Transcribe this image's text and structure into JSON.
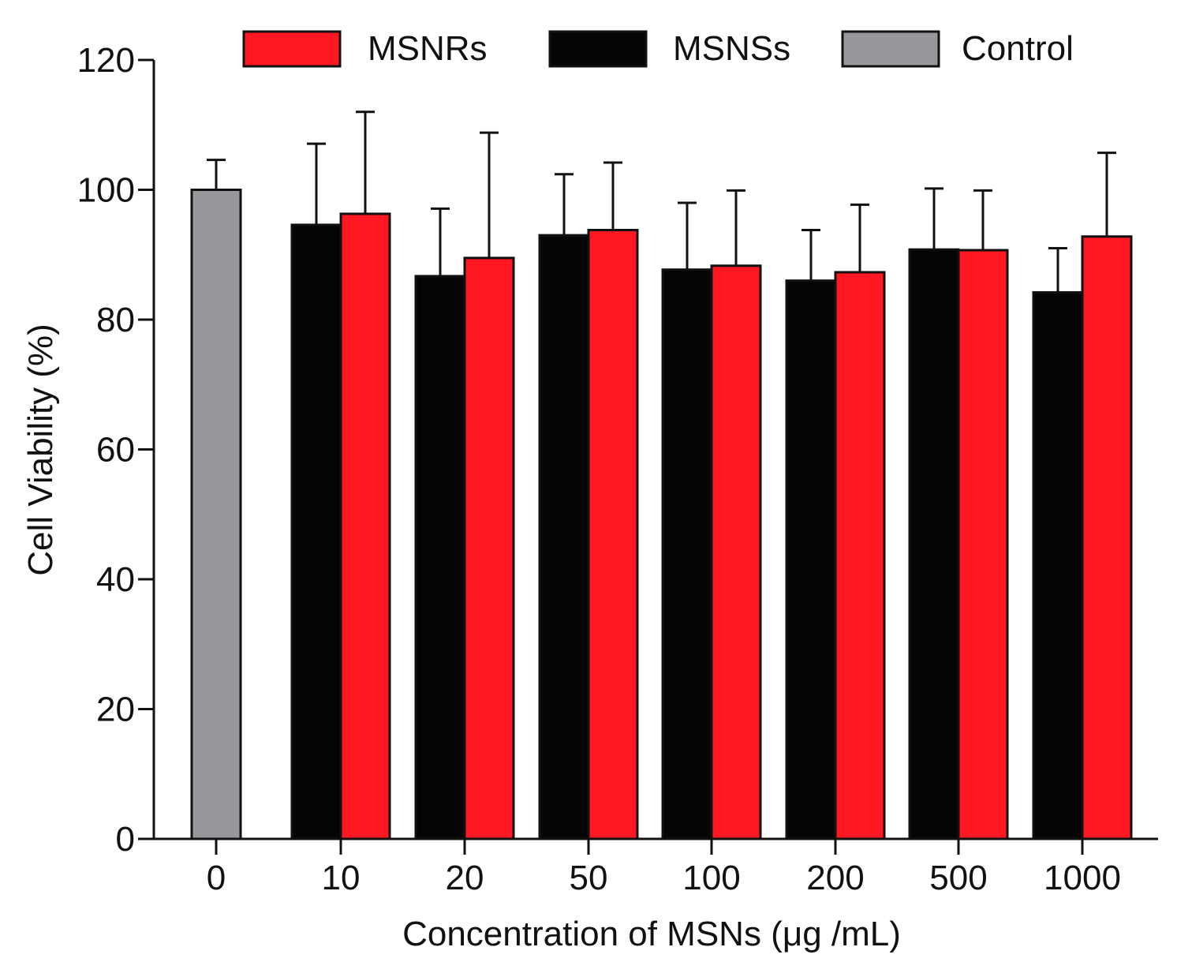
{
  "chart_data": {
    "type": "bar",
    "title": "",
    "xlabel": "Concentration of MSNs (μg /mL)",
    "ylabel": "Cell Viability (%)",
    "ylim": [
      0,
      120
    ],
    "yticks": [
      0,
      20,
      40,
      60,
      80,
      100,
      120
    ],
    "categories": [
      "0",
      "10",
      "20",
      "50",
      "100",
      "200",
      "500",
      "1000"
    ],
    "series": [
      {
        "name": "MSNRs",
        "color": "#ff1722",
        "values": [
          null,
          96.3,
          89.5,
          93.8,
          88.3,
          87.3,
          90.7,
          92.8
        ],
        "errors": [
          null,
          15.7,
          19.3,
          10.4,
          11.6,
          10.4,
          9.2,
          12.9
        ]
      },
      {
        "name": "MSNSs",
        "color": "#050505",
        "values": [
          null,
          94.6,
          86.7,
          93.0,
          87.7,
          86.0,
          90.8,
          84.2
        ],
        "errors": [
          null,
          12.5,
          10.4,
          9.4,
          10.3,
          7.8,
          9.4,
          6.8
        ]
      },
      {
        "name": "Control",
        "color": "#98989c",
        "values": [
          100.0,
          null,
          null,
          null,
          null,
          null,
          null,
          null
        ],
        "errors": [
          4.6,
          null,
          null,
          null,
          null,
          null,
          null,
          null
        ]
      }
    ],
    "legend": {
      "position": "top",
      "entries": [
        "MSNRs",
        "MSNSs",
        "Control"
      ]
    },
    "grid": false
  }
}
